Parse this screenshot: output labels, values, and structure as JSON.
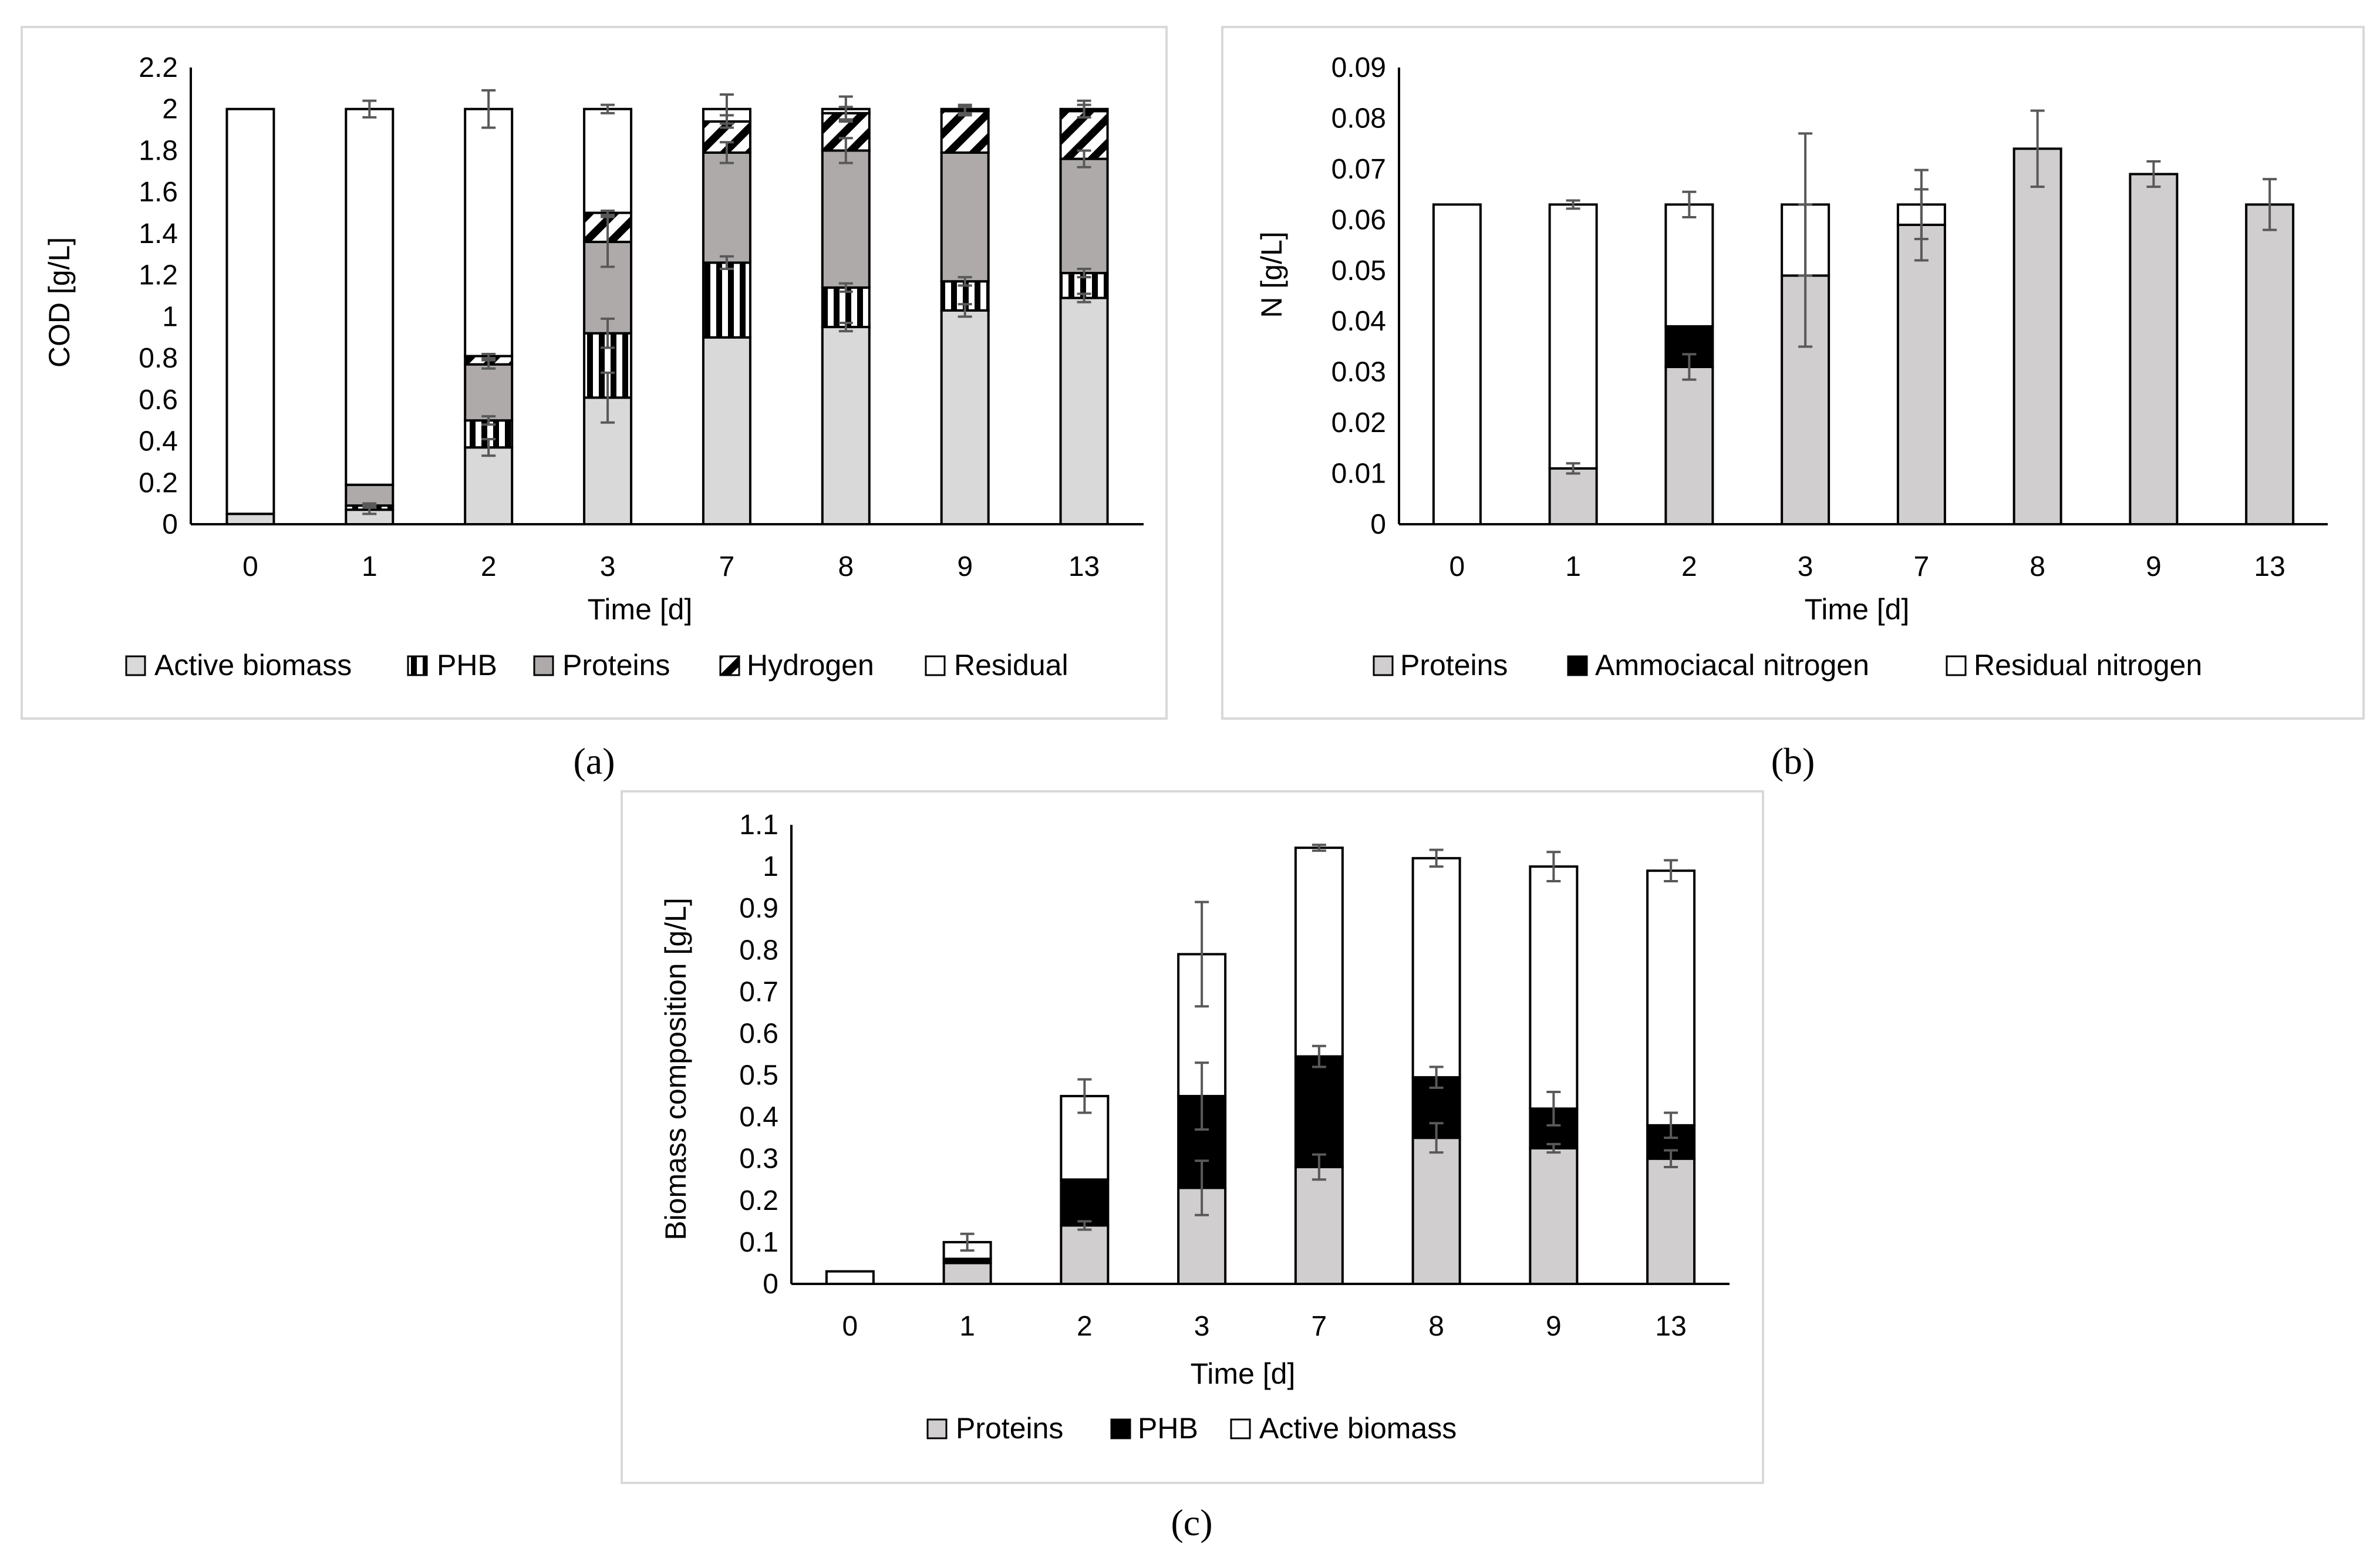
{
  "chart_data": [
    {
      "panel": "a",
      "caption": "(a)",
      "type": "bar",
      "stacked": true,
      "categories": [
        "0",
        "1",
        "2",
        "3",
        "7",
        "8",
        "9",
        "13"
      ],
      "xlabel": "Time [d]",
      "ylabel": "COD [g/L]",
      "ylim": [
        0,
        2.2
      ],
      "yticks": [
        "0",
        "0.2",
        "0.4",
        "0.6",
        "0.8",
        "1",
        "1.2",
        "1.4",
        "1.6",
        "1.8",
        "2",
        "2.2"
      ],
      "grid": false,
      "legend": "bottom",
      "series": [
        {
          "name": "Active biomass",
          "color": "#d9d9d9",
          "pattern": "none",
          "values": [
            0.05,
            0.07,
            0.37,
            0.61,
            0.9,
            0.95,
            1.03,
            1.09
          ],
          "errors": [
            0.0,
            0.02,
            0.04,
            0.12,
            0.0,
            0.02,
            0.03,
            0.02
          ]
        },
        {
          "name": "PHB",
          "color": "#ffffff",
          "pattern": "vertical",
          "values": [
            0.0,
            0.02,
            0.13,
            0.31,
            0.36,
            0.19,
            0.14,
            0.12
          ],
          "errors": [
            0.0,
            0.01,
            0.02,
            0.07,
            0.03,
            0.02,
            0.02,
            0.02
          ]
        },
        {
          "name": "Proteins",
          "color": "#aeaaaa",
          "pattern": "none",
          "values": [
            0.0,
            0.1,
            0.27,
            0.44,
            0.53,
            0.66,
            0.62,
            0.55
          ],
          "errors": [
            0.0,
            0.0,
            0.02,
            0.12,
            0.05,
            0.06,
            0.0,
            0.04
          ]
        },
        {
          "name": "Hydrogen",
          "color": "#ffffff",
          "pattern": "diagonal",
          "values": [
            0.0,
            0.0,
            0.04,
            0.14,
            0.15,
            0.18,
            0.2,
            0.23
          ],
          "errors": [
            0.0,
            0.0,
            0.01,
            0.01,
            0.03,
            0.03,
            0.02,
            0.03
          ]
        },
        {
          "name": "Residual",
          "color": "#ffffff",
          "pattern": "none",
          "values": [
            1.95,
            1.81,
            1.19,
            0.5,
            0.06,
            0.02,
            0.01,
            0.01
          ],
          "errors": [
            0.0,
            0.04,
            0.09,
            0.02,
            0.07,
            0.06,
            0.02,
            0.04
          ]
        }
      ]
    },
    {
      "panel": "b",
      "caption": "(b)",
      "type": "bar",
      "stacked": true,
      "categories": [
        "0",
        "1",
        "2",
        "3",
        "7",
        "8",
        "9",
        "13"
      ],
      "xlabel": "Time [d]",
      "ylabel": "N [g/L]",
      "ylim": [
        0,
        0.09
      ],
      "yticks": [
        "0",
        "0.01",
        "0.02",
        "0.03",
        "0.04",
        "0.05",
        "0.06",
        "0.07",
        "0.08",
        "0.09"
      ],
      "grid": false,
      "legend": "bottom",
      "series": [
        {
          "name": "Proteins",
          "color": "#d0cece",
          "pattern": "none",
          "values": [
            0.0,
            0.011,
            0.031,
            0.049,
            0.059,
            0.074,
            0.069,
            0.063
          ],
          "errors": [
            0.0,
            0.001,
            0.0025,
            0.014,
            0.007,
            0.0075,
            0.0025,
            0.005
          ]
        },
        {
          "name": "Ammociacal nitrogen",
          "color": "#000000",
          "pattern": "none",
          "values": [
            0.0,
            0.0,
            0.008,
            0.0,
            0.0,
            0.0,
            0.0,
            0.0
          ],
          "errors": [
            0.0,
            0.0,
            0.0,
            0.0,
            0.0,
            0.0,
            0.0,
            0.0
          ]
        },
        {
          "name": "Residual nitrogen",
          "color": "#ffffff",
          "pattern": "none",
          "values": [
            0.063,
            0.052,
            0.024,
            0.014,
            0.004,
            0.0,
            0.0,
            0.0
          ],
          "errors": [
            0.0,
            0.0008,
            0.0025,
            0.014,
            0.0068,
            0.0,
            0.0,
            0.0
          ]
        }
      ]
    },
    {
      "panel": "c",
      "caption": "(c)",
      "type": "bar",
      "stacked": true,
      "categories": [
        "0",
        "1",
        "2",
        "3",
        "7",
        "8",
        "9",
        "13"
      ],
      "xlabel": "Time [d]",
      "ylabel": "Biomass composition [g/L]",
      "ylim": [
        0,
        1.1
      ],
      "yticks": [
        "0",
        "0.1",
        "0.2",
        "0.3",
        "0.4",
        "0.5",
        "0.6",
        "0.7",
        "0.8",
        "0.9",
        "1",
        "1.1"
      ],
      "grid": false,
      "legend": "bottom",
      "series": [
        {
          "name": "Proteins",
          "color": "#d0cece",
          "pattern": "none",
          "values": [
            0.0,
            0.05,
            0.14,
            0.23,
            0.28,
            0.35,
            0.325,
            0.3
          ],
          "errors": [
            0.0,
            0.0,
            0.01,
            0.065,
            0.03,
            0.035,
            0.01,
            0.02
          ]
        },
        {
          "name": "PHB",
          "color": "#000000",
          "pattern": "none",
          "values": [
            0.0,
            0.01,
            0.11,
            0.22,
            0.265,
            0.145,
            0.095,
            0.08
          ],
          "errors": [
            0.0,
            0.0,
            0.0,
            0.08,
            0.025,
            0.025,
            0.04,
            0.03
          ]
        },
        {
          "name": "Active biomass",
          "color": "#ffffff",
          "pattern": "none",
          "values": [
            0.03,
            0.04,
            0.2,
            0.34,
            0.5,
            0.525,
            0.58,
            0.61
          ],
          "errors": [
            0.0,
            0.02,
            0.04,
            0.125,
            0.007,
            0.02,
            0.035,
            0.025
          ]
        }
      ]
    }
  ]
}
